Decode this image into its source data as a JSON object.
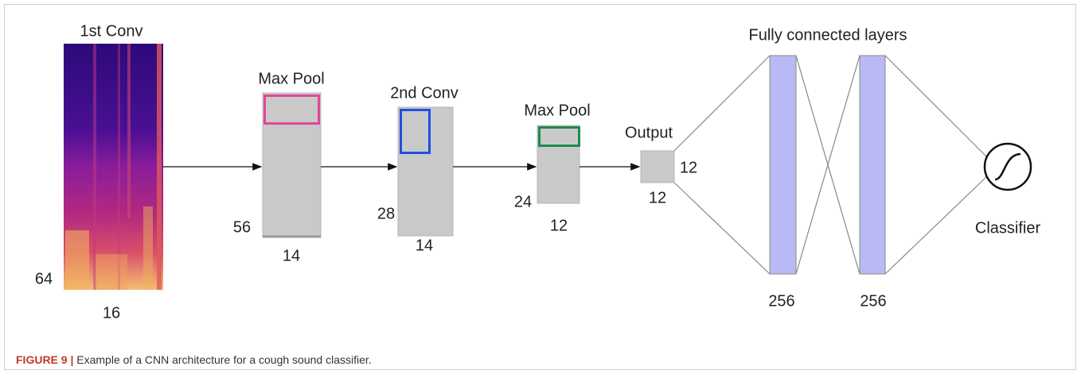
{
  "layers": [
    {
      "label": "1st Conv",
      "height": 64,
      "width": 16
    },
    {
      "label": "Max Pool",
      "height": 56,
      "width": 14
    },
    {
      "label": "2nd Conv",
      "height": 28,
      "width": 14
    },
    {
      "label": "Max Pool",
      "height": 24,
      "width": 12
    },
    {
      "label": "Output",
      "height": 12,
      "width": 12
    }
  ],
  "fully_connected": {
    "label": "Fully connected layers",
    "sizes": [
      256,
      256
    ]
  },
  "classifier": "Classifier",
  "caption": {
    "figure": "FIGURE 9 |",
    "text": "Example of a CNN architecture for a cough sound classifier."
  }
}
